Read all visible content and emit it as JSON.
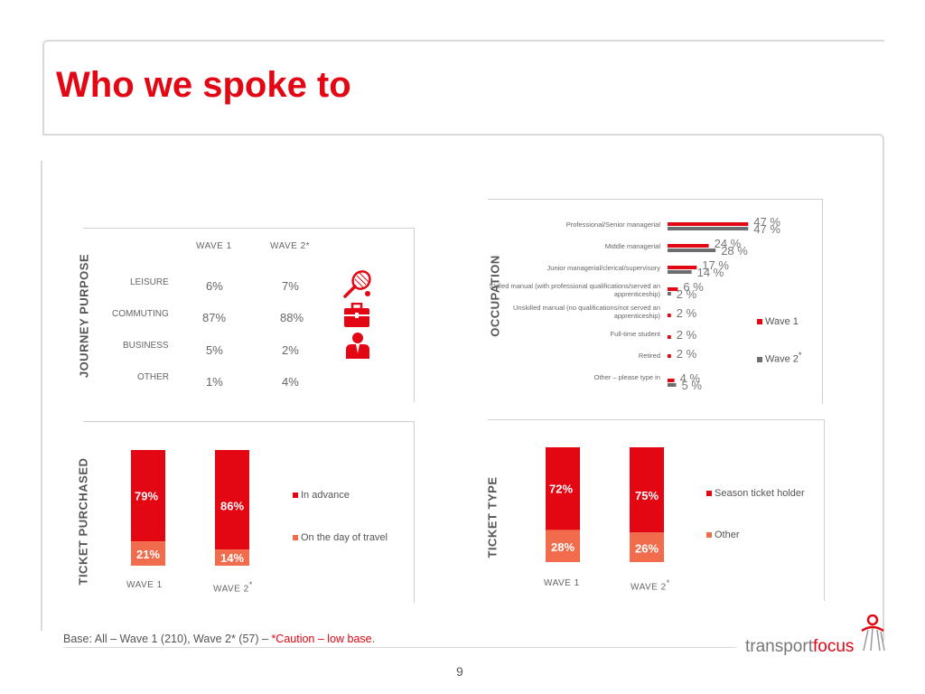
{
  "title": "Who we spoke to",
  "colors": {
    "red": "#e30613",
    "grey": "#6d6e71",
    "orange": "#f06c4c",
    "light_red": "#e8463b"
  },
  "journey": {
    "axis_label": "JOURNEY PURPOSE",
    "col1": "WAVE 1",
    "col2": "WAVE 2*",
    "rows": [
      {
        "label": "LEISURE",
        "w1": "6%",
        "w2": "7%",
        "icon": "tennis-racket-icon"
      },
      {
        "label": "COMMUTING",
        "w1": "87%",
        "w2": "88%",
        "icon": "briefcase-icon"
      },
      {
        "label": "BUSINESS",
        "w1": "5%",
        "w2": "2%",
        "icon": "businessman-icon"
      },
      {
        "label": "OTHER",
        "w1": "1%",
        "w2": "4%",
        "icon": ""
      }
    ]
  },
  "chart_data": [
    {
      "type": "bar",
      "title": "OCCUPATION",
      "orientation": "horizontal",
      "categories": [
        "Professional/Senior managerial",
        "Middle managerial",
        "Junior managerial/clerical/supervisory",
        "Skilled manual (with professional qualifications/served an apprenticeship)",
        "Unskilled manual (no qualifications/not served an apprenticeship)",
        "Full-time student",
        "Retired",
        "Other – please type in"
      ],
      "series": [
        {
          "name": "Wave 1",
          "values": [
            47,
            24,
            17,
            6,
            2,
            2,
            2,
            4
          ],
          "labels": [
            "47 %",
            "24 %",
            "17 %",
            "6 %",
            "2 %",
            "2 %",
            "2 %",
            "4 %"
          ]
        },
        {
          "name": "Wave 2",
          "values": [
            47,
            28,
            14,
            2,
            0,
            0,
            0,
            5
          ],
          "labels": [
            "47 %",
            "28 %",
            "14 %",
            "2 %",
            "",
            "",
            "",
            "5 %"
          ]
        }
      ],
      "legend": [
        "Wave 1",
        "Wave 2"
      ],
      "legend_note": "*",
      "xlim": [
        0,
        50
      ]
    },
    {
      "type": "bar",
      "stacked": true,
      "title": "TICKET PURCHASED",
      "categories": [
        "WAVE 1",
        "WAVE 2"
      ],
      "category_notes": [
        "",
        "*"
      ],
      "series": [
        {
          "name": "In advance",
          "values": [
            79,
            86
          ],
          "labels": [
            "79%",
            "86%"
          ]
        },
        {
          "name": "On the day of travel",
          "values": [
            21,
            14
          ],
          "labels": [
            "21%",
            "14%"
          ]
        }
      ],
      "ylim": [
        0,
        100
      ]
    },
    {
      "type": "bar",
      "stacked": true,
      "title": "TICKET TYPE",
      "categories": [
        "WAVE 1",
        "WAVE 2"
      ],
      "category_notes": [
        "",
        "*"
      ],
      "series": [
        {
          "name": "Season ticket holder",
          "values": [
            72,
            75
          ],
          "labels": [
            "72%",
            "75%"
          ]
        },
        {
          "name": "Other",
          "values": [
            28,
            26
          ],
          "labels": [
            "28%",
            "26%"
          ]
        }
      ],
      "ylim": [
        0,
        100
      ]
    }
  ],
  "footer": {
    "base_text": "Base: All – Wave 1 (210), Wave 2* (57) – ",
    "caution_text": "*Caution – low base",
    "end": "."
  },
  "page_number": "9",
  "logo": {
    "part1": "transport",
    "part2": "focus"
  }
}
